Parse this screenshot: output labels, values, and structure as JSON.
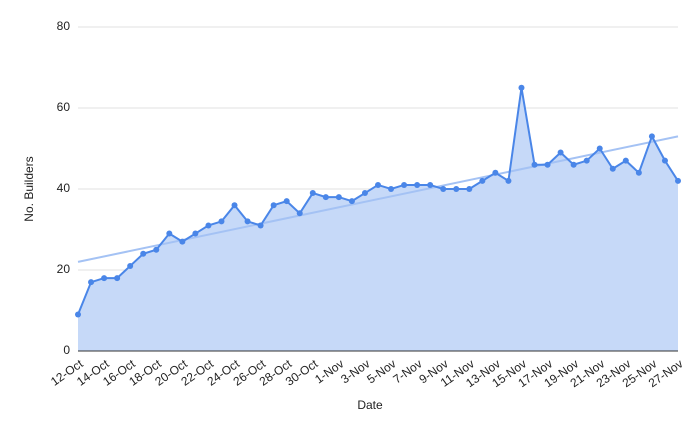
{
  "chart_data": {
    "type": "line",
    "x_label": "Date",
    "y_label": "No. Builders",
    "categories": [
      "12-Oct",
      null,
      "14-Oct",
      null,
      "16-Oct",
      null,
      "18-Oct",
      null,
      "20-Oct",
      null,
      "22-Oct",
      null,
      "24-Oct",
      null,
      "26-Oct",
      null,
      "28-Oct",
      null,
      "30-Oct",
      null,
      "1-Nov",
      null,
      "3-Nov",
      null,
      "5-Nov",
      null,
      "7-Nov",
      null,
      "9-Nov",
      null,
      "11-Nov",
      null,
      "13-Nov",
      null,
      "15-Nov",
      null,
      "17-Nov",
      null,
      "19-Nov",
      null,
      "21-Nov",
      null,
      "23-Nov",
      null,
      "25-Nov",
      null,
      "27-Nov"
    ],
    "values": [
      9,
      17,
      18,
      18,
      21,
      24,
      25,
      29,
      27,
      29,
      31,
      32,
      36,
      32,
      31,
      36,
      37,
      34,
      39,
      38,
      38,
      37,
      39,
      41,
      40,
      41,
      41,
      41,
      40,
      40,
      40,
      42,
      44,
      42,
      65,
      46,
      46,
      49,
      46,
      47,
      50,
      45,
      47,
      44,
      53,
      47,
      42
    ],
    "color": "#4a86e8",
    "area_color": "#c6d9f8",
    "trendline": [
      22,
      53
    ],
    "trend_color": "#a4c2f4",
    "ylim": [
      0,
      80
    ],
    "yticks": [
      0,
      20,
      40,
      60,
      80
    ],
    "grid": true
  }
}
